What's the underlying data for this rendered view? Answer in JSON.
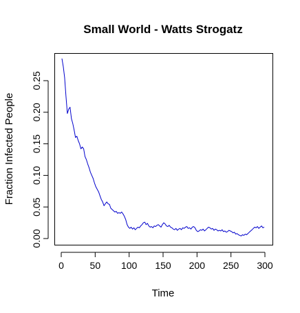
{
  "chart_data": {
    "type": "line",
    "title": "Small World - Watts Strogatz",
    "xlabel": "Time",
    "ylabel": "Fraction Infected People",
    "xlim": [
      0,
      300
    ],
    "ylim": [
      0,
      0.29
    ],
    "x_ticks": [
      0,
      50,
      100,
      150,
      200,
      250,
      300
    ],
    "x_tick_labels": [
      "0",
      "50",
      "100",
      "150",
      "200",
      "250",
      "300"
    ],
    "y_ticks": [
      0,
      0.05,
      0.1,
      0.15,
      0.2,
      0.25
    ],
    "y_tick_labels": [
      "0.00",
      "0.05",
      "0.10",
      "0.15",
      "0.20",
      "0.25"
    ],
    "grid": false,
    "legend": "none",
    "series": [
      {
        "color": "#0000cc",
        "x": [
          1,
          3,
          5,
          7,
          9,
          11,
          13,
          15,
          17,
          19,
          21,
          23,
          25,
          27,
          29,
          31,
          33,
          35,
          37,
          39,
          41,
          43,
          45,
          47,
          49,
          51,
          53,
          55,
          57,
          59,
          61,
          63,
          65,
          67,
          69,
          71,
          73,
          75,
          77,
          79,
          81,
          83,
          85,
          87,
          89,
          91,
          93,
          95,
          97,
          99,
          101,
          103,
          105,
          107,
          109,
          111,
          113,
          115,
          117,
          119,
          121,
          123,
          125,
          127,
          129,
          131,
          133,
          135,
          137,
          139,
          141,
          143,
          145,
          147,
          149,
          151,
          153,
          155,
          157,
          159,
          161,
          163,
          165,
          167,
          169,
          171,
          173,
          175,
          177,
          179,
          181,
          183,
          185,
          187,
          189,
          191,
          193,
          195,
          197,
          199,
          201,
          203,
          205,
          207,
          209,
          211,
          213,
          215,
          217,
          219,
          221,
          223,
          225,
          227,
          229,
          231,
          233,
          235,
          237,
          239,
          241,
          243,
          245,
          247,
          249,
          251,
          253,
          255,
          257,
          259,
          261,
          263,
          265,
          267,
          269,
          271,
          273,
          275,
          277,
          279,
          281,
          283,
          285,
          287,
          289,
          291,
          293,
          295,
          297,
          299
        ],
        "y": [
          0.285,
          0.272,
          0.255,
          0.225,
          0.198,
          0.205,
          0.208,
          0.19,
          0.182,
          0.172,
          0.16,
          0.162,
          0.155,
          0.15,
          0.142,
          0.145,
          0.142,
          0.13,
          0.125,
          0.118,
          0.112,
          0.105,
          0.1,
          0.095,
          0.088,
          0.082,
          0.078,
          0.074,
          0.068,
          0.062,
          0.058,
          0.052,
          0.055,
          0.058,
          0.055,
          0.054,
          0.048,
          0.046,
          0.044,
          0.042,
          0.043,
          0.04,
          0.041,
          0.04,
          0.042,
          0.039,
          0.035,
          0.03,
          0.022,
          0.018,
          0.016,
          0.018,
          0.015,
          0.017,
          0.014,
          0.016,
          0.018,
          0.017,
          0.02,
          0.022,
          0.025,
          0.026,
          0.022,
          0.024,
          0.02,
          0.018,
          0.019,
          0.017,
          0.02,
          0.019,
          0.021,
          0.022,
          0.02,
          0.018,
          0.022,
          0.025,
          0.023,
          0.02,
          0.019,
          0.021,
          0.018,
          0.017,
          0.015,
          0.014,
          0.016,
          0.013,
          0.015,
          0.016,
          0.014,
          0.017,
          0.016,
          0.018,
          0.019,
          0.016,
          0.017,
          0.015,
          0.018,
          0.019,
          0.017,
          0.013,
          0.011,
          0.012,
          0.014,
          0.013,
          0.015,
          0.012,
          0.014,
          0.016,
          0.018,
          0.017,
          0.015,
          0.016,
          0.013,
          0.015,
          0.014,
          0.012,
          0.013,
          0.012,
          0.014,
          0.011,
          0.012,
          0.01,
          0.011,
          0.013,
          0.012,
          0.011,
          0.009,
          0.01,
          0.007,
          0.008,
          0.006,
          0.005,
          0.004,
          0.006,
          0.005,
          0.007,
          0.006,
          0.008,
          0.01,
          0.012,
          0.014,
          0.016,
          0.018,
          0.017,
          0.019,
          0.016,
          0.018,
          0.02,
          0.017,
          0.018
        ]
      }
    ]
  }
}
